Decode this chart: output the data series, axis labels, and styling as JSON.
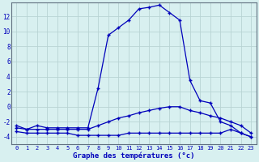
{
  "title": "Graphe des températures (°c)",
  "hours": [
    0,
    1,
    2,
    3,
    4,
    5,
    6,
    7,
    8,
    9,
    10,
    11,
    12,
    13,
    14,
    15,
    16,
    17,
    18,
    19,
    20,
    21,
    22,
    23
  ],
  "temp_current": [
    -2.5,
    -3.0,
    -2.5,
    -2.8,
    -2.8,
    -2.8,
    -2.8,
    -2.8,
    2.5,
    9.5,
    10.5,
    11.5,
    13.0,
    13.2,
    13.5,
    12.5,
    11.5,
    3.5,
    0.8,
    0.5,
    -2.0,
    -2.5,
    -3.5,
    -4.0
  ],
  "temp_mean": [
    -2.8,
    -3.0,
    -3.0,
    -3.0,
    -3.0,
    -3.0,
    -3.0,
    -3.0,
    -2.5,
    -2.0,
    -1.5,
    -1.2,
    -0.8,
    -0.5,
    -0.2,
    0.0,
    0.0,
    -0.5,
    -0.8,
    -1.2,
    -1.5,
    -2.0,
    -2.5,
    -3.5
  ],
  "temp_min": [
    -3.3,
    -3.5,
    -3.5,
    -3.5,
    -3.5,
    -3.5,
    -3.8,
    -3.8,
    -3.8,
    -3.8,
    -3.8,
    -3.5,
    -3.5,
    -3.5,
    -3.5,
    -3.5,
    -3.5,
    -3.5,
    -3.5,
    -3.5,
    -3.5,
    -3.0,
    -3.5,
    -4.0
  ],
  "ylim": [
    -5.0,
    13.8
  ],
  "yticks": [
    -4,
    -2,
    0,
    2,
    4,
    6,
    8,
    10,
    12
  ],
  "bg_color": "#d8f0f0",
  "grid_color": "#b8d4d4",
  "line_color": "#0000bb",
  "marker": "+"
}
